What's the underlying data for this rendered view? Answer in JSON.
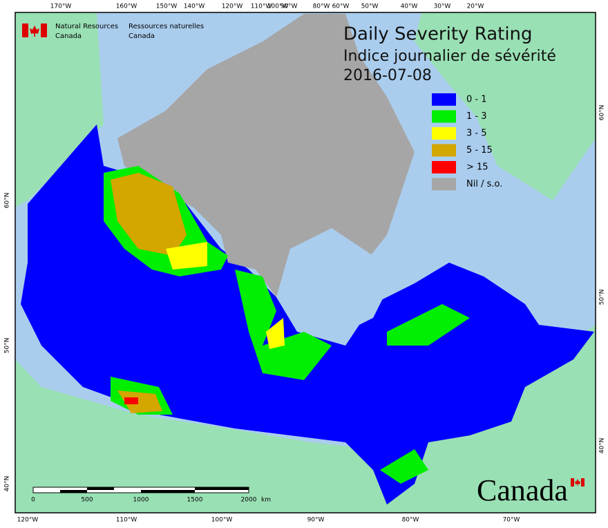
{
  "header": {
    "logo_en": [
      "Natural Resources",
      "Canada"
    ],
    "logo_fr": [
      "Ressources naturelles",
      "Canada"
    ]
  },
  "title": [
    "Daily Severity Rating",
    "Indice journalier de sévérité",
    "2016-07-08"
  ],
  "legend": [
    {
      "label": "0 - 1",
      "color": "#0000ff"
    },
    {
      "label": "1 - 3",
      "color": "#00ee00"
    },
    {
      "label": "3 - 5",
      "color": "#ffff00"
    },
    {
      "label": "5 - 15",
      "color": "#d4a600"
    },
    {
      "label": "> 15",
      "color": "#ff0000"
    },
    {
      "label": "Nil / s.o.",
      "color": "#a6a6a6"
    }
  ],
  "graticule": {
    "top": [
      "170°W",
      "160°W",
      "150°W",
      "140°W",
      "120°W",
      "110°W",
      "100°W",
      "90°W",
      "80°W",
      "60°W",
      "50°W",
      "40°W",
      "30°W",
      "20°W"
    ],
    "bottom": [
      "120°W",
      "110°W",
      "100°W",
      "90°W",
      "80°W",
      "70°W"
    ],
    "left": [
      "60°N",
      "50°N",
      "40°N"
    ],
    "right": [
      "60°N",
      "50°N",
      "40°N"
    ]
  },
  "scale_bar": {
    "labels": [
      "0",
      "500",
      "1000",
      "1500",
      "2000"
    ],
    "unit": "km"
  },
  "wordmark": "Canada"
}
